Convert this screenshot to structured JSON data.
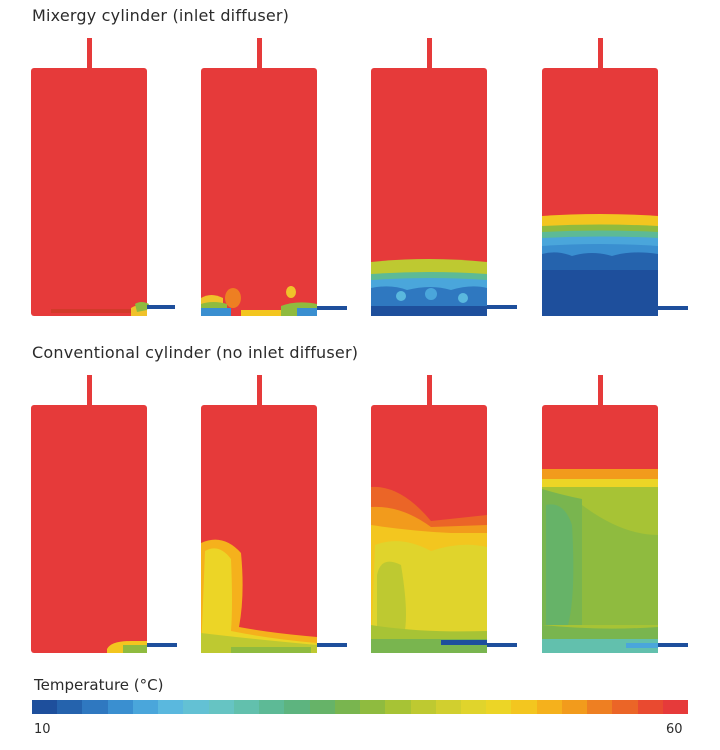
{
  "sections": {
    "top_title": "Mixergy cylinder (inlet diffuser)",
    "bottom_title": "Conventional cylinder (no inlet diffuser)"
  },
  "legend": {
    "title": "Temperature (°C)",
    "min_label": "10",
    "max_label": "60",
    "colors": [
      "#1e4f9c",
      "#2563ad",
      "#2f78c0",
      "#3a8fd0",
      "#4aa6db",
      "#5ab8de",
      "#63c1d4",
      "#66c4c3",
      "#62c0ad",
      "#5dba96",
      "#5db47f",
      "#66b368",
      "#79b54f",
      "#8fbb3f",
      "#a7c335",
      "#bec931",
      "#d1cf2f",
      "#e0d42c",
      "#ecd526",
      "#f3c61f",
      "#f5b11c",
      "#f29b1c",
      "#ee7f22",
      "#eb6527",
      "#e94a30",
      "#e63a3a"
    ]
  },
  "colors": {
    "hot": "#e63a3a",
    "cold": "#1e4f9c"
  }
}
